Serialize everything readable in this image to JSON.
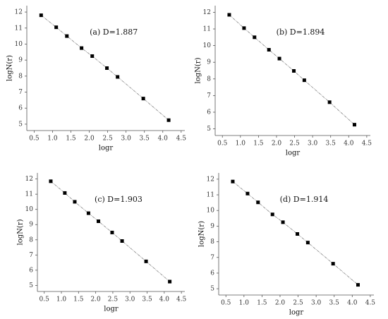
{
  "chart_data": [
    {
      "type": "scatter",
      "annotation": "(a) D=1.887",
      "x_label": "logr",
      "y_label": "logN(r)",
      "x": [
        0.69,
        1.1,
        1.39,
        1.79,
        2.08,
        2.48,
        2.77,
        3.47,
        4.16
      ],
      "values": [
        11.8,
        11.05,
        10.5,
        9.75,
        9.25,
        8.5,
        7.95,
        6.6,
        5.25
      ],
      "color": "#000000",
      "line_color": "#888888",
      "xlim": [
        0.3,
        4.6
      ],
      "ylim": [
        4.6,
        12.4
      ],
      "xticks": [
        0.5,
        {
          "value": 1,
          "label": "1.0"
        },
        1.5,
        {
          "value": 2,
          "label": "2.0"
        },
        2.5,
        {
          "value": 3,
          "label": "3.0"
        },
        3.5,
        {
          "value": 4,
          "label": "4.0"
        },
        4.5
      ],
      "yticks": [
        5,
        6,
        7,
        8,
        9,
        10,
        11,
        12
      ]
    },
    {
      "type": "scatter",
      "annotation": "(b) D=1.894",
      "x_label": "logr",
      "y_label": "logN(r)",
      "x": [
        0.69,
        1.1,
        1.39,
        1.79,
        2.08,
        2.48,
        2.77,
        3.47,
        4.16
      ],
      "values": [
        11.85,
        11.05,
        10.5,
        9.75,
        9.22,
        8.48,
        7.92,
        6.6,
        5.25
      ],
      "color": "#000000",
      "line_color": "#888888",
      "xlim": [
        0.3,
        4.6
      ],
      "ylim": [
        4.6,
        12.4
      ],
      "xticks": [
        0.5,
        {
          "value": 1,
          "label": "1.0"
        },
        1.5,
        {
          "value": 2,
          "label": "2.0"
        },
        2.5,
        {
          "value": 3,
          "label": "3.0"
        },
        3.5,
        {
          "value": 4,
          "label": "4.0"
        },
        4.5
      ],
      "yticks": [
        5,
        6,
        7,
        8,
        9,
        10,
        11,
        12
      ]
    },
    {
      "type": "scatter",
      "annotation": "(c) D=1.903",
      "x_label": "logr",
      "y_label": "logN(r)",
      "x": [
        0.69,
        1.1,
        1.39,
        1.79,
        2.08,
        2.48,
        2.77,
        3.47,
        4.16
      ],
      "values": [
        11.85,
        11.08,
        10.5,
        9.75,
        9.22,
        8.48,
        7.92,
        6.58,
        5.25
      ],
      "color": "#000000",
      "line_color": "#888888",
      "xlim": [
        0.3,
        4.6
      ],
      "ylim": [
        4.6,
        12.4
      ],
      "xticks": [
        0.5,
        {
          "value": 1,
          "label": "1.0"
        },
        1.5,
        {
          "value": 2,
          "label": "2.0"
        },
        2.5,
        {
          "value": 3,
          "label": "3.0"
        },
        3.5,
        {
          "value": 4,
          "label": "4.0"
        },
        4.5
      ],
      "yticks": [
        5,
        6,
        7,
        8,
        9,
        10,
        11,
        12
      ]
    },
    {
      "type": "scatter",
      "annotation": "(d) D=1.914",
      "x_label": "logr",
      "y_label": "logN(r)",
      "x": [
        0.69,
        1.1,
        1.39,
        1.79,
        2.08,
        2.48,
        2.77,
        3.47,
        4.16
      ],
      "values": [
        11.85,
        11.08,
        10.52,
        9.75,
        9.25,
        8.5,
        7.95,
        6.6,
        5.25
      ],
      "color": "#000000",
      "line_color": "#888888",
      "xlim": [
        0.3,
        4.6
      ],
      "ylim": [
        4.6,
        12.4
      ],
      "xticks": [
        0.5,
        {
          "value": 1,
          "label": "1.0"
        },
        1.5,
        {
          "value": 2,
          "label": "2.0"
        },
        2.5,
        {
          "value": 3,
          "label": "3.0"
        },
        3.5,
        {
          "value": 4,
          "label": "4.0"
        },
        4.5
      ],
      "yticks": [
        5,
        6,
        7,
        8,
        9,
        10,
        11,
        12
      ]
    }
  ]
}
